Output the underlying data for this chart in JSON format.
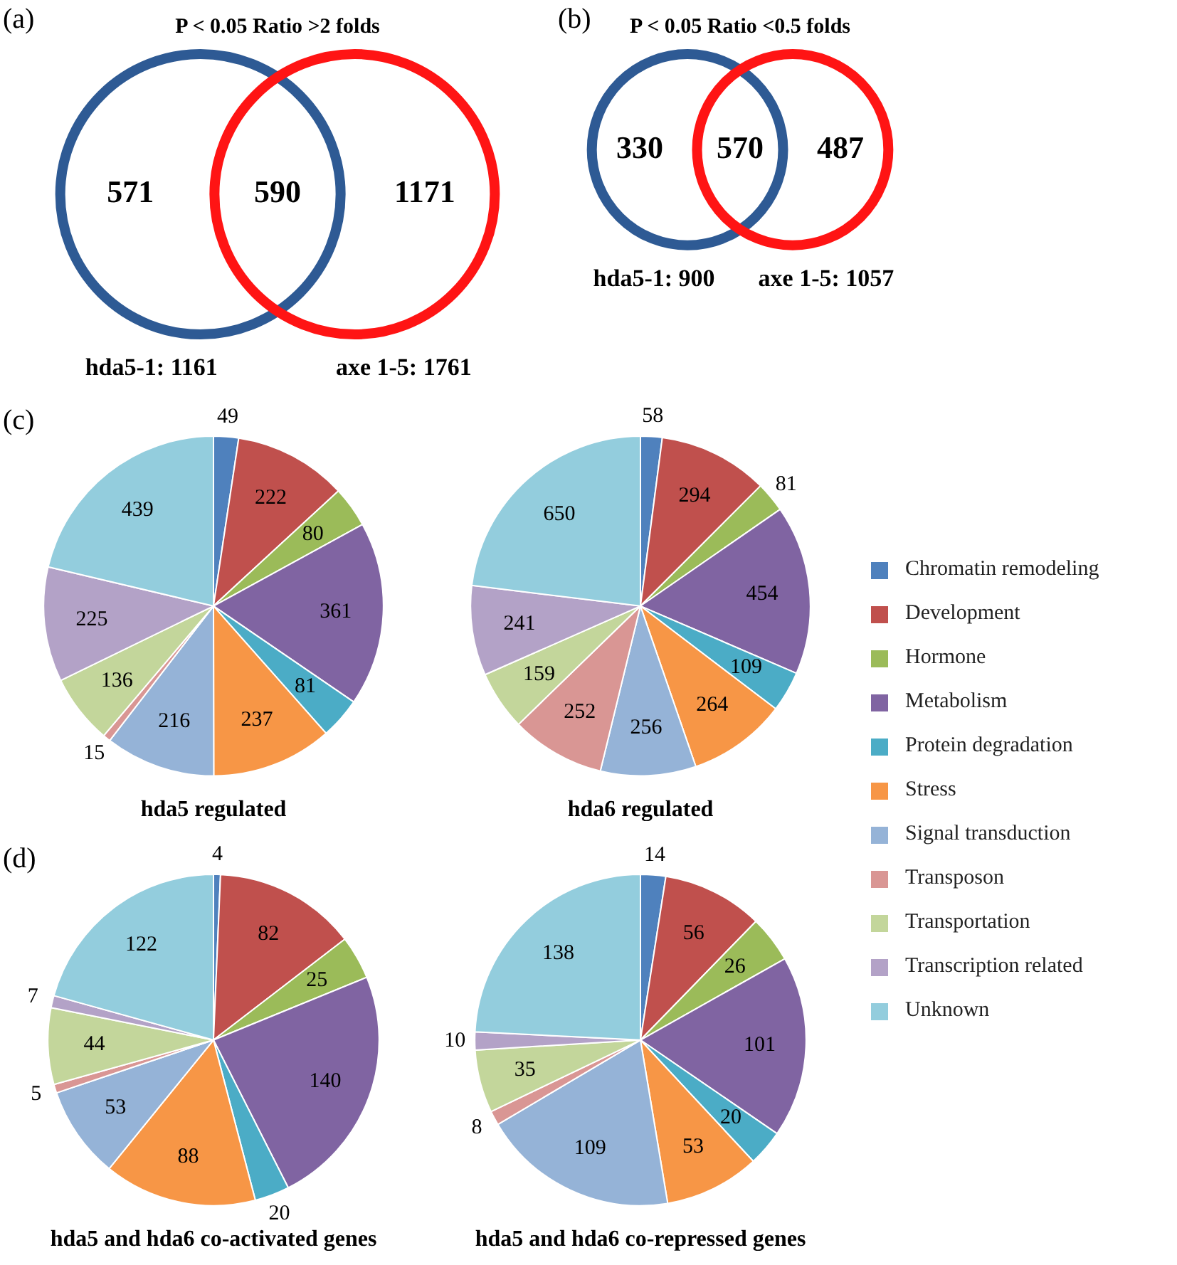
{
  "chart_data": [
    {
      "type": "other",
      "title": "P < 0.05 Ratio >2 folds",
      "annotations": [
        "(a)",
        "hda5-1: 1161",
        "axe 1-5: 1761"
      ],
      "categories": [
        null,
        null,
        null
      ],
      "values": [
        571,
        590,
        1171
      ],
      "data_labels": true
    },
    {
      "type": "other",
      "title": "P < 0.05 Ratio <0.5 folds",
      "annotations": [
        "(b)",
        "hda5-1: 900",
        "axe 1-5: 1057"
      ],
      "categories": [
        null,
        null,
        null
      ],
      "values": [
        330,
        570,
        487
      ],
      "data_labels": true
    },
    {
      "type": "pie",
      "title": "hda5 regulated",
      "annotations": [
        "(c)"
      ],
      "data_labels": true,
      "categories": [
        null,
        null,
        null,
        null,
        null,
        null,
        null,
        null,
        null,
        null,
        null
      ],
      "values": [
        49,
        222,
        80,
        361,
        81,
        237,
        216,
        15,
        136,
        225,
        439
      ],
      "colors": [
        "#4f81bd",
        "#c0504d",
        "#9bbb59",
        "#8064a2",
        "#4bacc6",
        "#f79646",
        "#95b3d7",
        "#d99694",
        "#c3d69b",
        "#b3a2c7",
        "#93cddd"
      ]
    },
    {
      "type": "pie",
      "title": "hda6 regulated",
      "legend": "right",
      "data_labels": true,
      "categories": [
        "Chromatin remodeling",
        "Development",
        "Hormone",
        "Metabolism",
        "Protein degradation",
        "Stress",
        "Signal transduction",
        "Transposon",
        "Transportation",
        "Transcription related",
        "Unknown"
      ],
      "values": [
        58,
        294,
        81,
        454,
        109,
        264,
        256,
        252,
        159,
        241,
        650
      ],
      "colors": [
        "#4f81bd",
        "#c0504d",
        "#9bbb59",
        "#8064a2",
        "#4bacc6",
        "#f79646",
        "#95b3d7",
        "#d99694",
        "#c3d69b",
        "#b3a2c7",
        "#93cddd"
      ]
    },
    {
      "type": "pie",
      "title": "hda5 and hda6 co-activated genes",
      "annotations": [
        "(d)"
      ],
      "data_labels": true,
      "categories": [
        null,
        null,
        null,
        null,
        null,
        null,
        null,
        null,
        null,
        null,
        null
      ],
      "values": [
        4,
        82,
        25,
        140,
        20,
        88,
        53,
        5,
        44,
        7,
        122
      ],
      "colors": [
        "#4f81bd",
        "#c0504d",
        "#9bbb59",
        "#8064a2",
        "#4bacc6",
        "#f79646",
        "#95b3d7",
        "#d99694",
        "#c3d69b",
        "#b3a2c7",
        "#93cddd"
      ]
    },
    {
      "type": "pie",
      "title": "hda5 and hda6 co-repressed genes",
      "data_labels": true,
      "categories": [
        null,
        null,
        null,
        null,
        null,
        null,
        null,
        null,
        null,
        null,
        null
      ],
      "values": [
        14,
        56,
        26,
        101,
        20,
        53,
        109,
        8,
        35,
        10,
        138
      ],
      "colors": [
        "#4f81bd",
        "#c0504d",
        "#9bbb59",
        "#8064a2",
        "#4bacc6",
        "#f79646",
        "#95b3d7",
        "#d99694",
        "#c3d69b",
        "#b3a2c7",
        "#93cddd"
      ]
    }
  ]
}
